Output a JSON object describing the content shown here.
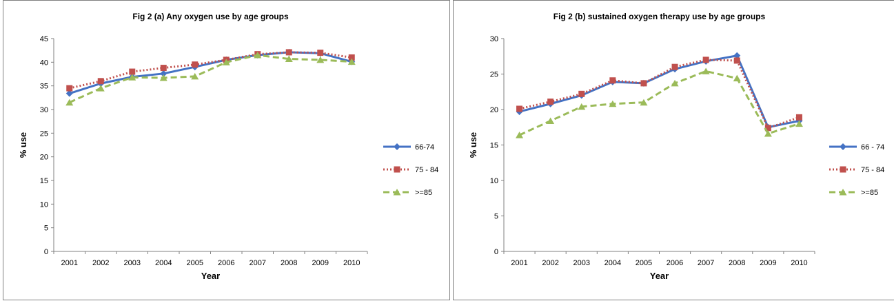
{
  "chart_data": [
    {
      "type": "line",
      "title": "Fig 2 (a) Any oxygen use by age groups",
      "xlabel": "Year",
      "ylabel": "% use",
      "ylim": [
        0,
        45
      ],
      "yticks": [
        0,
        5,
        10,
        15,
        20,
        25,
        30,
        35,
        40,
        45
      ],
      "categories": [
        "2001",
        "2002",
        "2003",
        "2004",
        "2005",
        "2006",
        "2007",
        "2008",
        "2009",
        "2010"
      ],
      "legend_position": "right",
      "grid": false,
      "series": [
        {
          "name": "66-74",
          "color": "#4472C4",
          "marker": "diamond",
          "dash": "solid",
          "values": [
            33.4,
            35.5,
            36.9,
            37.6,
            39.0,
            40.5,
            41.5,
            42.1,
            41.9,
            40.1
          ]
        },
        {
          "name": "75 - 84",
          "color": "#C0504D",
          "marker": "square",
          "dash": "dotted",
          "values": [
            34.5,
            36.0,
            38.0,
            38.8,
            39.5,
            40.5,
            41.7,
            42.1,
            42.0,
            41.0
          ]
        },
        {
          "name": ">=85",
          "color": "#9BBB59",
          "marker": "triangle",
          "dash": "dashed",
          "values": [
            31.5,
            34.5,
            36.8,
            36.7,
            37.0,
            40.0,
            41.5,
            40.7,
            40.5,
            40.1
          ]
        }
      ]
    },
    {
      "type": "line",
      "title": "Fig 2 (b) sustained oxygen therapy use by age groups",
      "xlabel": "Year",
      "ylabel": "% use",
      "ylim": [
        0,
        30
      ],
      "yticks": [
        0,
        5,
        10,
        15,
        20,
        25,
        30
      ],
      "categories": [
        "2001",
        "2002",
        "2003",
        "2004",
        "2005",
        "2006",
        "2007",
        "2008",
        "2009",
        "2010"
      ],
      "legend_position": "right",
      "grid": false,
      "series": [
        {
          "name": "66 - 74",
          "color": "#4472C4",
          "marker": "diamond",
          "dash": "solid",
          "values": [
            19.7,
            20.8,
            22.0,
            23.9,
            23.7,
            25.7,
            26.8,
            27.6,
            17.5,
            18.4
          ]
        },
        {
          "name": "75 - 84",
          "color": "#C0504D",
          "marker": "square",
          "dash": "dotted",
          "values": [
            20.1,
            21.1,
            22.2,
            24.1,
            23.7,
            26.0,
            27.0,
            26.9,
            17.4,
            18.9
          ]
        },
        {
          "name": ">=85",
          "color": "#9BBB59",
          "marker": "triangle",
          "dash": "dashed",
          "values": [
            16.4,
            18.4,
            20.4,
            20.8,
            21.0,
            23.7,
            25.4,
            24.4,
            16.6,
            18.0
          ]
        }
      ]
    }
  ]
}
